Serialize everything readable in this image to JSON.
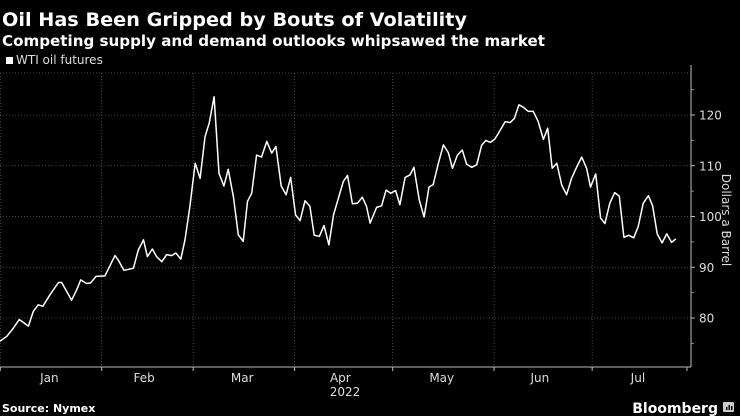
{
  "header": {
    "title": "Oil Has Been Gripped by Bouts of Volatility",
    "subtitle": "Competing supply and demand outlooks whipsawed the market"
  },
  "footer": {
    "source": "Source: Nymex",
    "brand": "Bloomberg"
  },
  "colors": {
    "background": "#000000",
    "line": "#ffffff",
    "grid": "#555555",
    "text": "#dddddd"
  },
  "chart_data": {
    "type": "line",
    "title": "Oil Has Been Gripped by Bouts of Volatility",
    "subtitle": "Competing supply and demand outlooks whipsawed the market",
    "legend": [
      "WTI oil futures"
    ],
    "legend_position": "top-left",
    "xlabel": "2022",
    "ylabel": "Dollars a Barrel",
    "y_axis_side": "right",
    "ylim": [
      70,
      128
    ],
    "yticks": [
      80,
      90,
      100,
      110,
      120
    ],
    "x_unit": "day of year 2022",
    "xlim": [
      0,
      211
    ],
    "month_ticks": [
      {
        "label": "Jan",
        "start": 1,
        "mid": 16
      },
      {
        "label": "Feb",
        "start": 32,
        "mid": 45
      },
      {
        "label": "Mar",
        "start": 60,
        "mid": 75
      },
      {
        "label": "Apr",
        "start": 91,
        "mid": 105
      },
      {
        "label": "May",
        "start": 121,
        "mid": 136
      },
      {
        "label": "Jun",
        "start": 152,
        "mid": 166
      },
      {
        "label": "Jul",
        "start": 182,
        "mid": 196
      }
    ],
    "grid": true,
    "series": [
      {
        "name": "WTI oil futures",
        "x": [
          0.9,
          3.0,
          5.0,
          6.8,
          9.6,
          11.1,
          12.6,
          14.0,
          16.2,
          18.8,
          19.8,
          22.8,
          24.4,
          25.6,
          27.4,
          28.6,
          30.3,
          33.0,
          36.1,
          37.1,
          38.8,
          41.7,
          43.2,
          44.8,
          46.0,
          47.5,
          48.8,
          50.4,
          51.9,
          53.4,
          54.7,
          56.2,
          57.5,
          59.0,
          60.6,
          62.1,
          63.6,
          64.9,
          66.4,
          67.9,
          69.4,
          70.7,
          72.3,
          73.8,
          75.3,
          76.6,
          77.9,
          79.4,
          80.9,
          82.5,
          84.0,
          85.3,
          86.9,
          88.4,
          89.8,
          91.3,
          92.7,
          94.2,
          95.7,
          97.0,
          98.6,
          100.0,
          101.5,
          102.9,
          104.4,
          105.9,
          107.2,
          108.7,
          110.2,
          111.7,
          113.0,
          114.1,
          116.1,
          117.6,
          119.0,
          120.4,
          121.9,
          123.2,
          124.8,
          126.3,
          127.5,
          129.1,
          130.6,
          132.1,
          133.4,
          135.0,
          136.5,
          138.0,
          139.3,
          140.8,
          142.3,
          143.6,
          145.2,
          146.7,
          148.2,
          149.5,
          150.9,
          152.3,
          153.8,
          155.4,
          156.9,
          158.2,
          159.6,
          161.0,
          162.5,
          164.0,
          165.5,
          167.1,
          168.4,
          169.8,
          171.2,
          172.7,
          174.2,
          175.7,
          177.3,
          178.8,
          180.3,
          181.5,
          183.1,
          184.6,
          185.9,
          187.4,
          188.9,
          190.3,
          191.7,
          193.2,
          194.7,
          196.1,
          197.6,
          199.2,
          200.5,
          201.9,
          203.4,
          204.8,
          206.3,
          207.6
        ],
        "values": [
          75.4,
          76.4,
          78.0,
          79.7,
          78.4,
          81.3,
          82.6,
          82.3,
          84.6,
          87.0,
          87.0,
          83.5,
          85.6,
          87.5,
          86.8,
          86.9,
          88.2,
          88.3,
          92.3,
          91.4,
          89.4,
          89.8,
          93.4,
          95.4,
          92.1,
          93.6,
          92.1,
          91.1,
          92.5,
          92.3,
          92.8,
          91.6,
          95.4,
          102.0,
          110.5,
          107.5,
          115.7,
          118.4,
          123.6,
          108.5,
          106.0,
          109.3,
          103.9,
          96.4,
          95.1,
          103.0,
          104.6,
          112.1,
          111.7,
          114.8,
          112.5,
          113.8,
          106.0,
          104.3,
          107.7,
          100.3,
          99.2,
          103.1,
          102.0,
          96.3,
          96.1,
          98.2,
          94.4,
          100.3,
          103.6,
          106.9,
          108.1,
          102.5,
          102.6,
          103.8,
          102.0,
          98.7,
          101.8,
          102.1,
          105.2,
          104.6,
          105.1,
          102.3,
          107.7,
          108.2,
          109.7,
          103.3,
          99.9,
          105.8,
          106.3,
          110.5,
          114.1,
          112.6,
          109.5,
          112.1,
          113.1,
          110.3,
          109.7,
          110.2,
          114.0,
          115.0,
          114.6,
          115.3,
          116.9,
          118.7,
          118.5,
          119.3,
          122.0,
          121.5,
          120.7,
          120.7,
          118.7,
          115.2,
          117.4,
          109.5,
          110.5,
          106.2,
          104.3,
          107.5,
          109.8,
          111.7,
          109.5,
          105.8,
          108.4,
          99.7,
          98.6,
          102.6,
          104.7,
          104.0,
          95.9,
          96.3,
          95.8,
          98.0,
          102.6,
          104.1,
          102.1,
          96.6,
          94.8,
          96.6,
          94.9,
          95.6
        ]
      }
    ]
  }
}
